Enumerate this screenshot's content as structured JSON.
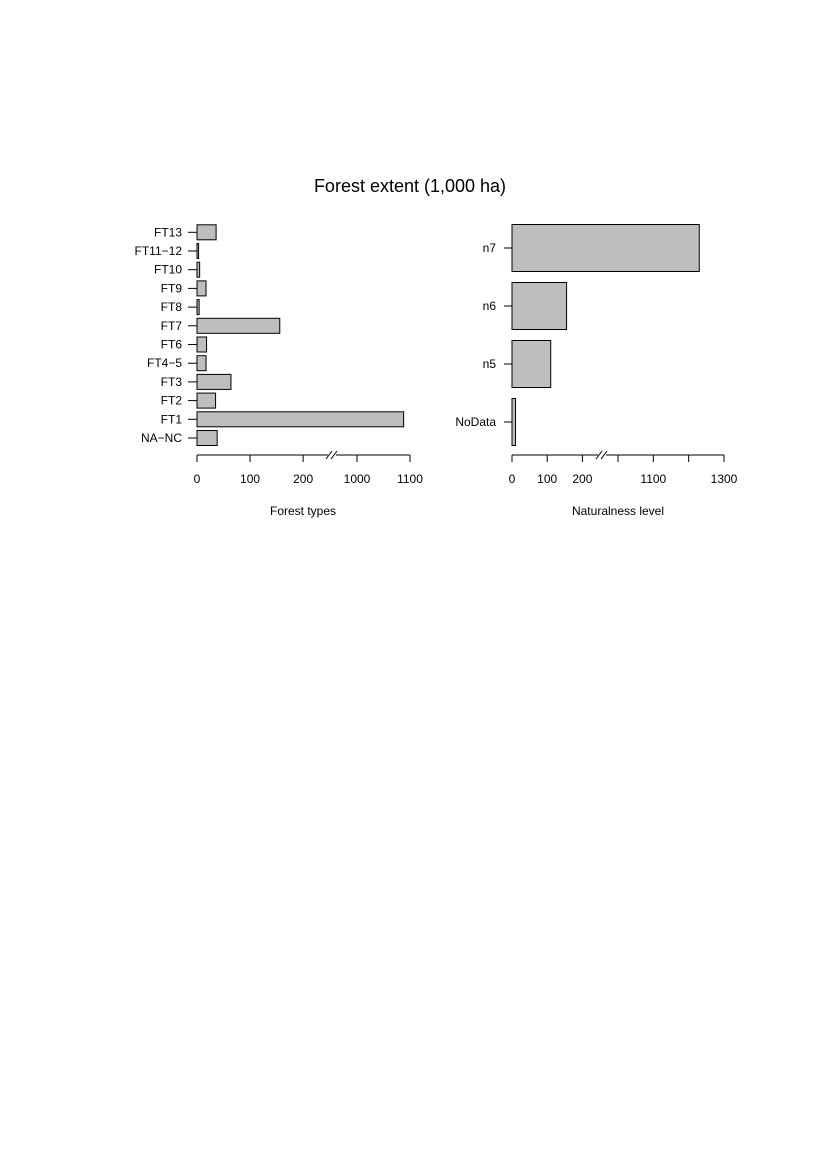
{
  "title": "Forest extent (1,000 ha)",
  "chart_data": [
    {
      "type": "bar",
      "orientation": "horizontal",
      "xlabel": "Forest types",
      "categories": [
        "NA−NC",
        "FT1",
        "FT2",
        "FT3",
        "FT4−5",
        "FT6",
        "FT7",
        "FT8",
        "FT9",
        "FT10",
        "FT11−12",
        "FT13"
      ],
      "values": [
        38,
        1088,
        35,
        64,
        17,
        18,
        156,
        4,
        17,
        5,
        3,
        36
      ],
      "axis_break": [
        245,
        1000
      ],
      "xticks": [
        0,
        100,
        200,
        1000,
        1100
      ],
      "grid": false
    },
    {
      "type": "bar",
      "orientation": "horizontal",
      "xlabel": "Naturalness level",
      "categories": [
        "NoData",
        "n5",
        "n6",
        "n7"
      ],
      "values": [
        10,
        110,
        155,
        1230
      ],
      "axis_break": [
        250,
        1000
      ],
      "xticks": [
        0,
        100,
        200,
        1100,
        1300
      ],
      "grid": false
    }
  ]
}
